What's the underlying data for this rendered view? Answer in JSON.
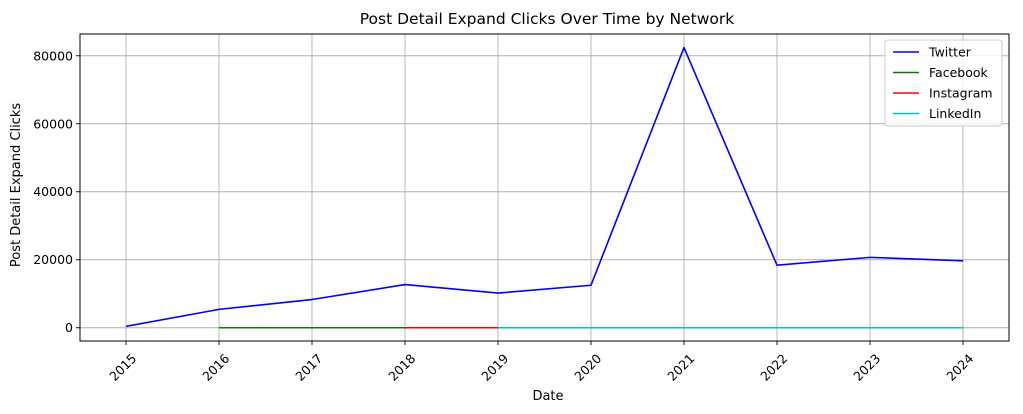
{
  "chart_data": {
    "type": "line",
    "title": "Post Detail Expand Clicks Over Time by Network",
    "xlabel": "Date",
    "ylabel": "Post Detail Expand Clicks",
    "x": [
      "2015",
      "2016",
      "2017",
      "2018",
      "2019",
      "2020",
      "2021",
      "2022",
      "2023",
      "2024"
    ],
    "yticks": [
      "0",
      "20000",
      "40000",
      "60000",
      "80000"
    ],
    "ylim": [
      -3900,
      86400
    ],
    "grid": true,
    "legend_position": "top-right",
    "series": [
      {
        "name": "Twitter",
        "color": "#0000ff",
        "x": [
          "2015",
          "2016",
          "2017",
          "2018",
          "2019",
          "2020",
          "2021",
          "2022",
          "2023",
          "2024"
        ],
        "values": [
          400,
          5400,
          8300,
          12700,
          10200,
          12500,
          82400,
          18400,
          20700,
          19700
        ]
      },
      {
        "name": "Facebook",
        "color": "#008000",
        "x": [
          "2016",
          "2017",
          "2018"
        ],
        "values": [
          0,
          0,
          0
        ]
      },
      {
        "name": "Instagram",
        "color": "#ff0000",
        "x": [
          "2018",
          "2019"
        ],
        "values": [
          0,
          0
        ]
      },
      {
        "name": "LinkedIn",
        "color": "#00bfbf",
        "x": [
          "2019",
          "2020",
          "2021",
          "2022",
          "2023",
          "2024"
        ],
        "values": [
          0,
          0,
          0,
          0,
          0,
          0
        ]
      }
    ]
  }
}
